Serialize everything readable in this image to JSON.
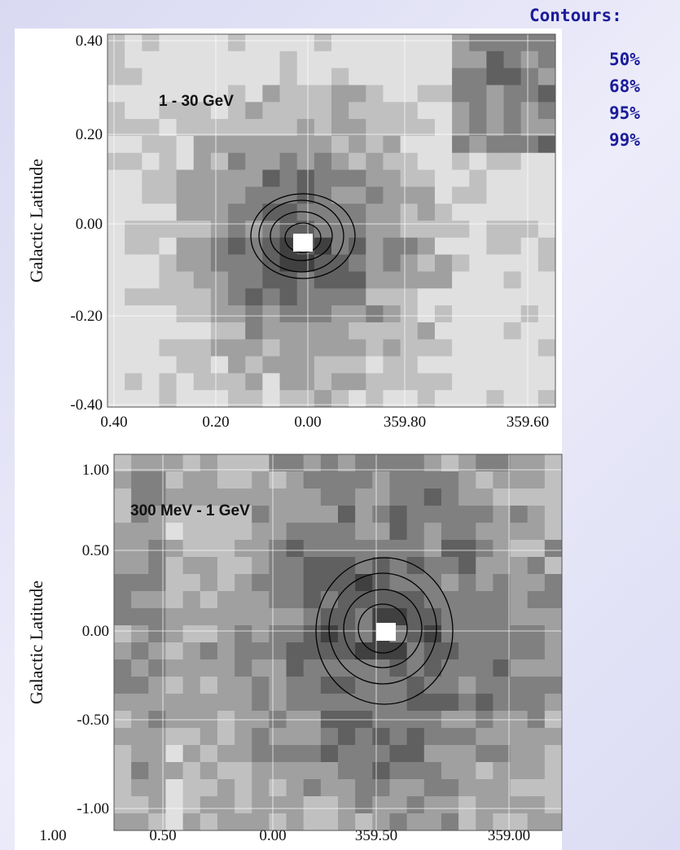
{
  "legend": {
    "title": "Contours:",
    "entries": [
      "50%",
      "68%",
      "95%",
      "99%"
    ]
  },
  "panels": [
    {
      "label": "1 - 30 GeV",
      "y_axis_label": "Galactic Latitude",
      "yticks": [
        "0.40",
        "0.20",
        "0.00",
        "-0.20",
        "-0.40"
      ],
      "xticks": [
        "0.40",
        "0.20",
        "0.00",
        "359.80",
        "359.60"
      ]
    },
    {
      "label": "300 MeV - 1 GeV",
      "y_axis_label": "Galactic Latitude",
      "yticks": [
        "1.00",
        "0.50",
        "0.00",
        "-0.50",
        "-1.00"
      ],
      "xticks": [
        "1.00",
        "0.50",
        "0.00",
        "359.50",
        "359.00"
      ]
    }
  ]
}
